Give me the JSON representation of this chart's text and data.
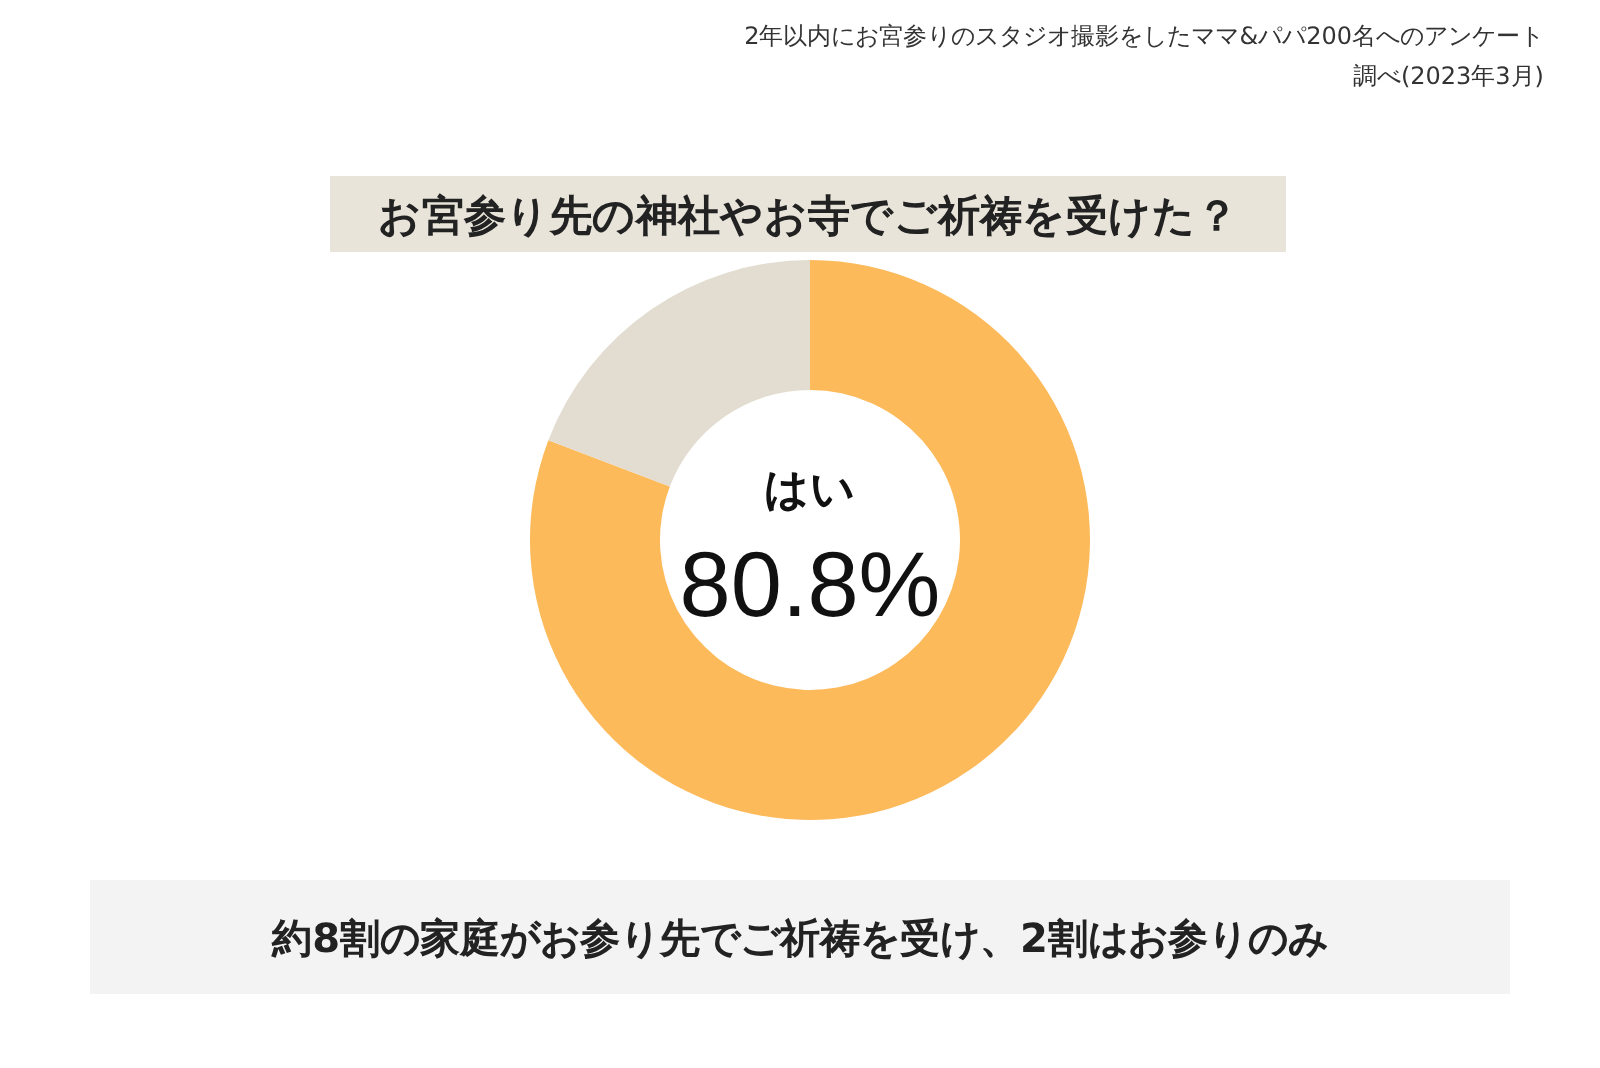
{
  "chart_data": {
    "type": "donut",
    "title": "お宮参り先の神社やお寺でご祈祷を受けた？",
    "subtitle": "2年以内にお宮参りのスタジオ撮影をしたママ&パパ200名へのアンケート",
    "annotations": [
      "調べ(2023年3月)",
      "約8割の家庭がお参り先でご祈祷を受け、2割はお参りのみ"
    ],
    "categories": [
      "はい",
      null
    ],
    "values": [
      80.8,
      19.2
    ],
    "colors": [
      "#fdba5b",
      "#e2ddd0"
    ],
    "value_labels": [
      "80.8%",
      null
    ],
    "legend": false
  }
}
